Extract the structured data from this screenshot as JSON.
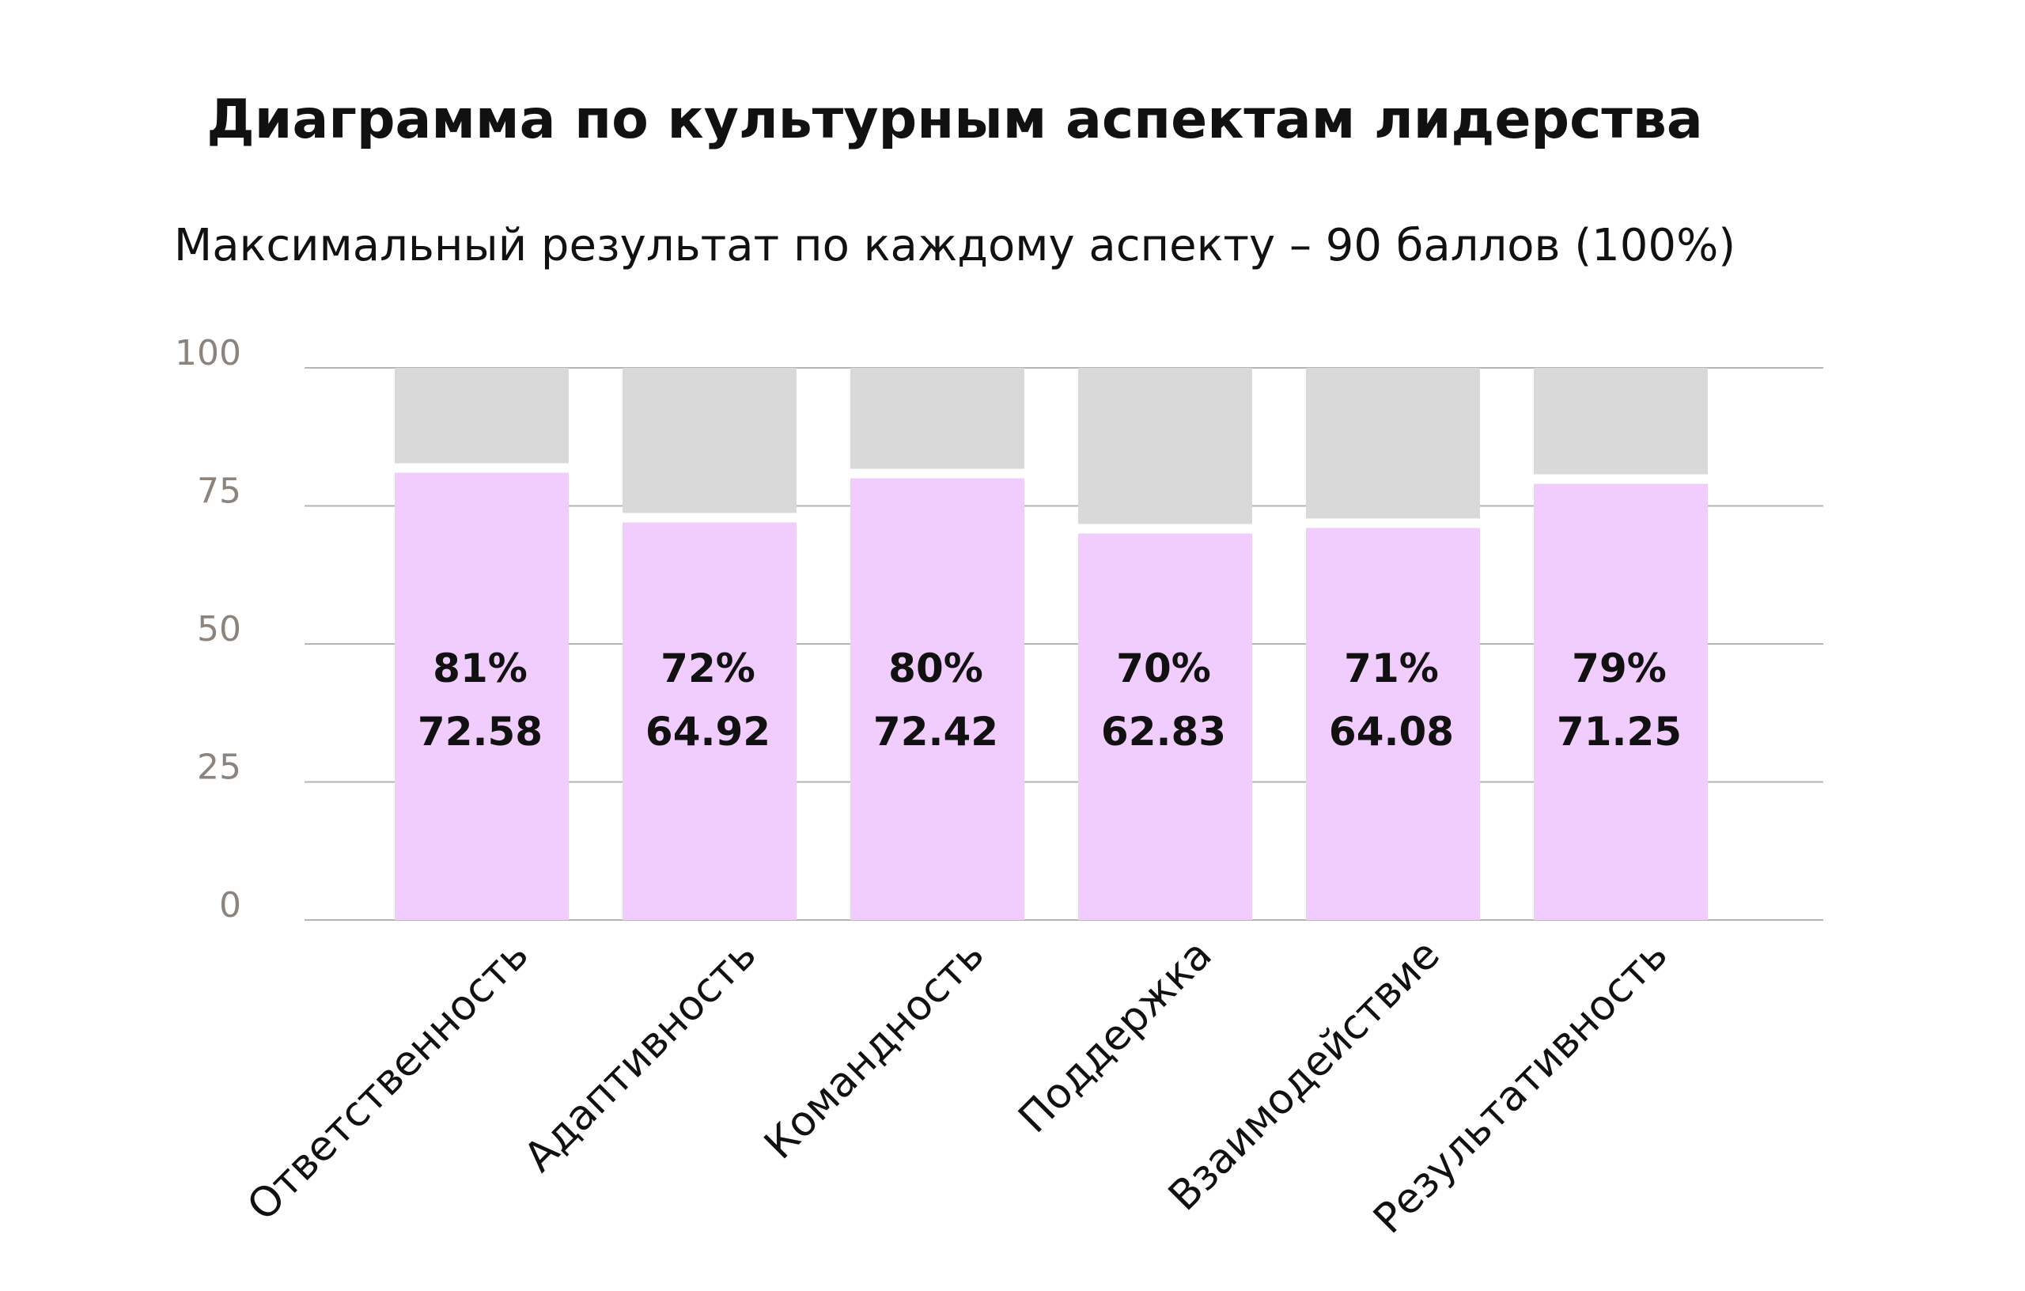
{
  "title": "Диаграмма по культурным аспектам лидерства",
  "subtitle": "Максимальный результат по каждому аспекту – 90 баллов (100%)",
  "colors": {
    "bar": "#f1cdfd",
    "remainder": "#d9d9d9",
    "grid": "#b5b5b5",
    "tick": "#8c847c",
    "text": "#111111"
  },
  "chart_data": {
    "type": "bar",
    "stacked": true,
    "categories": [
      "Ответственность",
      "Адаптивность",
      "Командность",
      "Поддержка",
      "Взаимодействие",
      "Результативность"
    ],
    "series": [
      {
        "values": [
          81,
          72,
          80,
          70,
          71,
          79
        ]
      },
      {
        "values": [
          19,
          28,
          20,
          30,
          29,
          21
        ]
      }
    ],
    "percent_labels": [
      "81%",
      "72%",
      "80%",
      "70%",
      "71%",
      "79%"
    ],
    "score_labels": [
      "72.58",
      "64.92",
      "72.42",
      "62.83",
      "64.08",
      "71.25"
    ],
    "yticks": [
      0,
      25,
      50,
      75,
      100
    ],
    "ylim": [
      0,
      100
    ],
    "grid": true,
    "legend": false
  }
}
